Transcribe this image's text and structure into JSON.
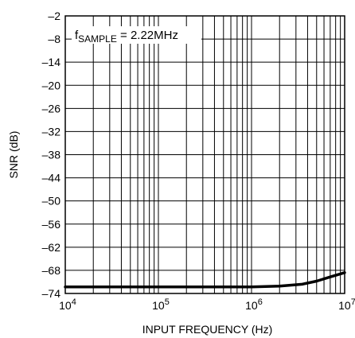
{
  "chart_data": {
    "type": "line",
    "title": "",
    "xlabel": "INPUT FREQUENCY (Hz)",
    "ylabel": "SNR (dB)",
    "xscale": "log",
    "xlim": [
      10000,
      10000000
    ],
    "ylim": [
      -74,
      -2
    ],
    "grid": true,
    "x_ticks": [
      10000,
      100000,
      1000000,
      10000000
    ],
    "x_tick_labels": [
      {
        "base": "10",
        "exp": "4"
      },
      {
        "base": "10",
        "exp": "5"
      },
      {
        "base": "10",
        "exp": "6"
      },
      {
        "base": "10",
        "exp": "7"
      }
    ],
    "y_ticks": [
      -2,
      -8,
      -14,
      -20,
      -26,
      -32,
      -38,
      -44,
      -50,
      -56,
      -62,
      -68,
      -74
    ],
    "y_tick_labels": [
      "–2",
      "–8",
      "–14",
      "–20",
      "–26",
      "–32",
      "–38",
      "–44",
      "–50",
      "–56",
      "–62",
      "–68",
      "–74"
    ],
    "annotation": {
      "prefix": "f",
      "subscript": "SAMPLE",
      "suffix": " = 2.22MHz"
    },
    "series": [
      {
        "x": [
          10000,
          30000,
          100000,
          300000,
          1000000,
          2000000,
          3500000,
          5000000,
          7000000,
          10000000
        ],
        "y": [
          -72.3,
          -72.3,
          -72.3,
          -72.3,
          -72.3,
          -72.1,
          -71.6,
          -70.8,
          -69.7,
          -68.6
        ]
      }
    ]
  }
}
